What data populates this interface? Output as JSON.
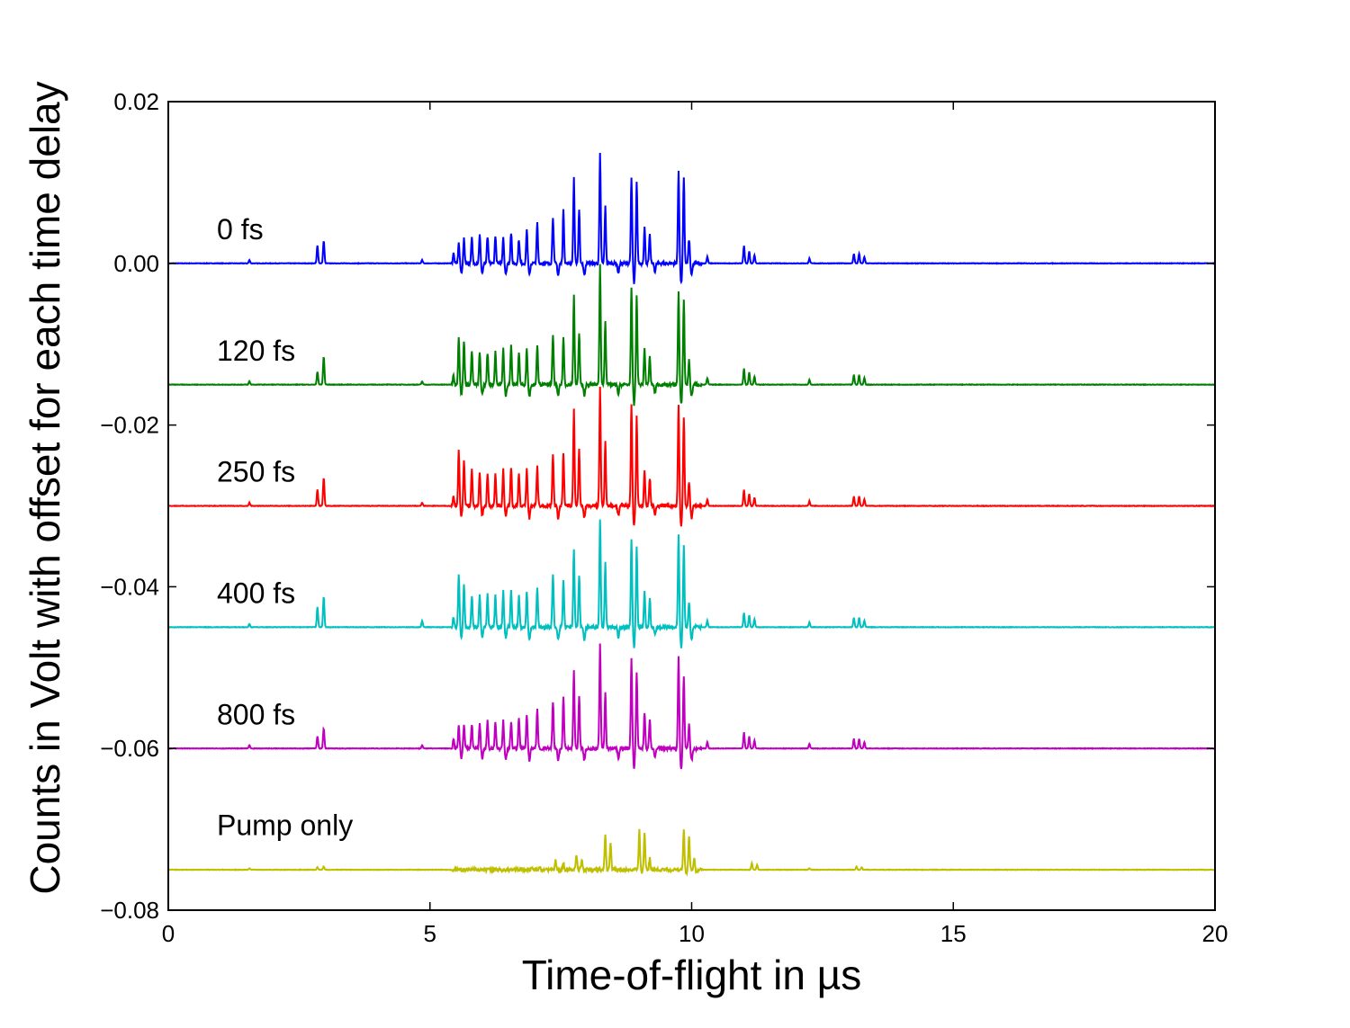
{
  "chart_data": {
    "type": "line",
    "title": "",
    "xlabel": "Time-of-flight in µs",
    "ylabel": "Counts in Volt with offset for each time delay",
    "xlim": [
      0,
      20
    ],
    "ylim": [
      -0.08,
      0.02
    ],
    "xticks": [
      0,
      5,
      10,
      15,
      20
    ],
    "xtick_labels": [
      "0",
      "5",
      "10",
      "15",
      "20"
    ],
    "yticks": [
      0.02,
      0.0,
      -0.02,
      -0.04,
      -0.06,
      -0.08
    ],
    "ytick_labels": [
      "0.02",
      "0.00",
      "−0.02",
      "−0.04",
      "−0.06",
      "−0.08"
    ],
    "grid": false,
    "legend": "none",
    "series": [
      {
        "name": "0 fs",
        "color": "#0000ff",
        "offset": 0.0,
        "peaks": [
          [
            1.55,
            0.0004
          ],
          [
            2.85,
            0.0022
          ],
          [
            2.97,
            0.0028
          ],
          [
            4.85,
            0.0004
          ],
          [
            5.45,
            0.0012
          ],
          [
            5.55,
            0.0025
          ],
          [
            5.65,
            0.003
          ],
          [
            5.8,
            0.0031
          ],
          [
            5.95,
            0.0035
          ],
          [
            6.1,
            0.0033
          ],
          [
            6.25,
            0.0035
          ],
          [
            6.4,
            0.0033
          ],
          [
            6.55,
            0.0038
          ],
          [
            6.7,
            0.003
          ],
          [
            6.85,
            0.0042
          ],
          [
            7.05,
            0.005
          ],
          [
            7.35,
            0.0058
          ],
          [
            7.55,
            0.0065
          ],
          [
            7.75,
            0.0105
          ],
          [
            7.85,
            0.0065
          ],
          [
            8.25,
            0.0135
          ],
          [
            8.35,
            0.007
          ],
          [
            8.85,
            0.0105
          ],
          [
            8.95,
            0.01
          ],
          [
            9.1,
            0.0045
          ],
          [
            9.2,
            0.0035
          ],
          [
            9.75,
            0.0115
          ],
          [
            9.85,
            0.0105
          ],
          [
            9.95,
            0.003
          ],
          [
            10.3,
            0.0008
          ],
          [
            11.0,
            0.0022
          ],
          [
            11.1,
            0.0015
          ],
          [
            11.2,
            0.001
          ],
          [
            12.25,
            0.0006
          ],
          [
            13.1,
            0.0012
          ],
          [
            13.2,
            0.0012
          ],
          [
            13.3,
            0.0008
          ]
        ],
        "dips": [
          [
            5.6,
            -0.0012
          ],
          [
            6.0,
            -0.0012
          ],
          [
            6.45,
            -0.0014
          ],
          [
            6.9,
            -0.0015
          ],
          [
            7.45,
            -0.0015
          ],
          [
            7.95,
            -0.0015
          ],
          [
            8.6,
            -0.0012
          ],
          [
            8.9,
            -0.0025
          ],
          [
            9.3,
            -0.001
          ],
          [
            9.8,
            -0.0025
          ],
          [
            10.0,
            -0.0015
          ]
        ],
        "label": "0 fs"
      },
      {
        "name": "120 fs",
        "color": "#008000",
        "offset": -0.015,
        "peaks": [
          [
            1.55,
            0.0004
          ],
          [
            2.85,
            0.0016
          ],
          [
            2.97,
            0.0035
          ],
          [
            4.85,
            0.0004
          ],
          [
            5.45,
            0.0012
          ],
          [
            5.55,
            0.006
          ],
          [
            5.65,
            0.0055
          ],
          [
            5.8,
            0.0042
          ],
          [
            5.95,
            0.004
          ],
          [
            6.1,
            0.004
          ],
          [
            6.25,
            0.0042
          ],
          [
            6.4,
            0.0045
          ],
          [
            6.55,
            0.0048
          ],
          [
            6.7,
            0.004
          ],
          [
            6.85,
            0.0045
          ],
          [
            7.05,
            0.005
          ],
          [
            7.35,
            0.006
          ],
          [
            7.55,
            0.0058
          ],
          [
            7.75,
            0.011
          ],
          [
            7.85,
            0.0065
          ],
          [
            8.25,
            0.0148
          ],
          [
            8.35,
            0.008
          ],
          [
            8.85,
            0.0118
          ],
          [
            8.95,
            0.011
          ],
          [
            9.1,
            0.0045
          ],
          [
            9.2,
            0.0035
          ],
          [
            9.75,
            0.0115
          ],
          [
            9.85,
            0.0105
          ],
          [
            9.95,
            0.003
          ],
          [
            10.3,
            0.0008
          ],
          [
            11.0,
            0.002
          ],
          [
            11.1,
            0.0015
          ],
          [
            11.2,
            0.001
          ],
          [
            12.25,
            0.0006
          ],
          [
            13.1,
            0.0012
          ],
          [
            13.2,
            0.0012
          ],
          [
            13.3,
            0.0008
          ]
        ],
        "dips": [
          [
            5.6,
            -0.0012
          ],
          [
            6.0,
            -0.0012
          ],
          [
            6.45,
            -0.0014
          ],
          [
            6.9,
            -0.0015
          ],
          [
            7.45,
            -0.0015
          ],
          [
            7.95,
            -0.0015
          ],
          [
            8.6,
            -0.0012
          ],
          [
            8.9,
            -0.0025
          ],
          [
            9.3,
            -0.001
          ],
          [
            9.8,
            -0.0025
          ],
          [
            10.0,
            -0.0015
          ]
        ],
        "label": "120 fs"
      },
      {
        "name": "250 fs",
        "color": "#ff0000",
        "offset": -0.03,
        "peaks": [
          [
            1.55,
            0.0004
          ],
          [
            2.85,
            0.002
          ],
          [
            2.97,
            0.0035
          ],
          [
            4.85,
            0.0004
          ],
          [
            5.45,
            0.0012
          ],
          [
            5.55,
            0.0068
          ],
          [
            5.65,
            0.0058
          ],
          [
            5.8,
            0.0045
          ],
          [
            5.95,
            0.004
          ],
          [
            6.1,
            0.004
          ],
          [
            6.25,
            0.0042
          ],
          [
            6.4,
            0.0045
          ],
          [
            6.55,
            0.0048
          ],
          [
            6.7,
            0.004
          ],
          [
            6.85,
            0.0045
          ],
          [
            7.05,
            0.005
          ],
          [
            7.35,
            0.0065
          ],
          [
            7.55,
            0.0065
          ],
          [
            7.75,
            0.012
          ],
          [
            7.85,
            0.007
          ],
          [
            8.25,
            0.0148
          ],
          [
            8.35,
            0.008
          ],
          [
            8.85,
            0.0125
          ],
          [
            8.95,
            0.011
          ],
          [
            9.1,
            0.0045
          ],
          [
            9.2,
            0.0035
          ],
          [
            9.75,
            0.0125
          ],
          [
            9.85,
            0.011
          ],
          [
            9.95,
            0.003
          ],
          [
            10.3,
            0.0008
          ],
          [
            11.0,
            0.002
          ],
          [
            11.1,
            0.0015
          ],
          [
            11.2,
            0.001
          ],
          [
            12.25,
            0.0006
          ],
          [
            13.1,
            0.0012
          ],
          [
            13.2,
            0.0012
          ],
          [
            13.3,
            0.0008
          ]
        ],
        "dips": [
          [
            5.6,
            -0.0012
          ],
          [
            6.0,
            -0.0012
          ],
          [
            6.45,
            -0.0014
          ],
          [
            6.9,
            -0.0015
          ],
          [
            7.45,
            -0.0015
          ],
          [
            7.95,
            -0.0015
          ],
          [
            8.6,
            -0.0012
          ],
          [
            8.9,
            -0.0025
          ],
          [
            9.3,
            -0.001
          ],
          [
            9.8,
            -0.0025
          ],
          [
            10.0,
            -0.0015
          ]
        ],
        "label": "250 fs"
      },
      {
        "name": "400 fs",
        "color": "#00bfbf",
        "offset": -0.045,
        "peaks": [
          [
            1.55,
            0.0004
          ],
          [
            2.85,
            0.0025
          ],
          [
            2.97,
            0.0038
          ],
          [
            4.85,
            0.0008
          ],
          [
            5.45,
            0.0012
          ],
          [
            5.55,
            0.0065
          ],
          [
            5.65,
            0.0055
          ],
          [
            5.8,
            0.004
          ],
          [
            5.95,
            0.004
          ],
          [
            6.1,
            0.004
          ],
          [
            6.25,
            0.0042
          ],
          [
            6.4,
            0.0045
          ],
          [
            6.55,
            0.0045
          ],
          [
            6.7,
            0.004
          ],
          [
            6.85,
            0.0045
          ],
          [
            7.05,
            0.005
          ],
          [
            7.35,
            0.0065
          ],
          [
            7.55,
            0.0058
          ],
          [
            7.75,
            0.0098
          ],
          [
            7.85,
            0.0065
          ],
          [
            8.25,
            0.0135
          ],
          [
            8.35,
            0.008
          ],
          [
            8.85,
            0.011
          ],
          [
            8.95,
            0.01
          ],
          [
            9.1,
            0.0045
          ],
          [
            9.2,
            0.0035
          ],
          [
            9.75,
            0.0115
          ],
          [
            9.85,
            0.01
          ],
          [
            9.95,
            0.003
          ],
          [
            10.3,
            0.0008
          ],
          [
            11.0,
            0.0018
          ],
          [
            11.1,
            0.0015
          ],
          [
            11.2,
            0.001
          ],
          [
            12.25,
            0.0006
          ],
          [
            13.1,
            0.0012
          ],
          [
            13.2,
            0.0012
          ],
          [
            13.3,
            0.0008
          ]
        ],
        "dips": [
          [
            5.6,
            -0.0012
          ],
          [
            6.0,
            -0.0012
          ],
          [
            6.45,
            -0.0014
          ],
          [
            6.9,
            -0.0015
          ],
          [
            7.45,
            -0.0015
          ],
          [
            7.95,
            -0.0015
          ],
          [
            8.6,
            -0.0012
          ],
          [
            8.9,
            -0.0025
          ],
          [
            9.3,
            -0.001
          ],
          [
            9.8,
            -0.0025
          ],
          [
            10.0,
            -0.0015
          ]
        ],
        "label": "400 fs"
      },
      {
        "name": "800 fs",
        "color": "#bf00bf",
        "offset": -0.06,
        "peaks": [
          [
            1.55,
            0.0004
          ],
          [
            2.85,
            0.0015
          ],
          [
            2.97,
            0.0025
          ],
          [
            4.85,
            0.0004
          ],
          [
            5.45,
            0.0012
          ],
          [
            5.55,
            0.003
          ],
          [
            5.65,
            0.003
          ],
          [
            5.8,
            0.003
          ],
          [
            5.95,
            0.0032
          ],
          [
            6.1,
            0.0035
          ],
          [
            6.25,
            0.0033
          ],
          [
            6.4,
            0.0035
          ],
          [
            6.55,
            0.0033
          ],
          [
            6.7,
            0.0038
          ],
          [
            6.85,
            0.0042
          ],
          [
            7.05,
            0.005
          ],
          [
            7.35,
            0.0058
          ],
          [
            7.55,
            0.0065
          ],
          [
            7.75,
            0.0098
          ],
          [
            7.85,
            0.0065
          ],
          [
            8.25,
            0.0128
          ],
          [
            8.35,
            0.007
          ],
          [
            8.85,
            0.011
          ],
          [
            8.95,
            0.0095
          ],
          [
            9.1,
            0.0045
          ],
          [
            9.2,
            0.0035
          ],
          [
            9.75,
            0.0115
          ],
          [
            9.85,
            0.009
          ],
          [
            9.95,
            0.003
          ],
          [
            10.3,
            0.0008
          ],
          [
            11.0,
            0.002
          ],
          [
            11.1,
            0.0015
          ],
          [
            11.2,
            0.001
          ],
          [
            12.25,
            0.0006
          ],
          [
            13.1,
            0.0012
          ],
          [
            13.2,
            0.0012
          ],
          [
            13.3,
            0.0008
          ]
        ],
        "dips": [
          [
            5.6,
            -0.0012
          ],
          [
            6.0,
            -0.0012
          ],
          [
            6.45,
            -0.0014
          ],
          [
            6.9,
            -0.0015
          ],
          [
            7.45,
            -0.0015
          ],
          [
            7.95,
            -0.0015
          ],
          [
            8.6,
            -0.0012
          ],
          [
            8.9,
            -0.0025
          ],
          [
            9.3,
            -0.001
          ],
          [
            9.8,
            -0.0025
          ],
          [
            10.0,
            -0.0015
          ]
        ],
        "label": "800 fs"
      },
      {
        "name": "Pump only",
        "color": "#bfbf00",
        "offset": -0.075,
        "peaks": [
          [
            1.55,
            0.0002
          ],
          [
            2.85,
            0.0003
          ],
          [
            2.97,
            0.0004
          ],
          [
            6.75,
            0.0002
          ],
          [
            6.95,
            0.0003
          ],
          [
            7.1,
            0.0004
          ],
          [
            7.4,
            0.0012
          ],
          [
            7.55,
            0.0008
          ],
          [
            7.8,
            0.0018
          ],
          [
            7.9,
            0.0012
          ],
          [
            8.35,
            0.0045
          ],
          [
            8.45,
            0.0035
          ],
          [
            9.0,
            0.005
          ],
          [
            9.1,
            0.0045
          ],
          [
            9.2,
            0.0015
          ],
          [
            9.85,
            0.005
          ],
          [
            9.95,
            0.004
          ],
          [
            10.05,
            0.0015
          ],
          [
            11.15,
            0.0008
          ],
          [
            11.25,
            0.0006
          ],
          [
            12.25,
            0.0002
          ],
          [
            13.15,
            0.0004
          ],
          [
            13.25,
            0.0003
          ]
        ],
        "dips": [
          [
            9.05,
            -0.0003
          ],
          [
            9.9,
            -0.0005
          ],
          [
            10.1,
            -0.0004
          ]
        ],
        "label": "Pump only"
      }
    ]
  }
}
